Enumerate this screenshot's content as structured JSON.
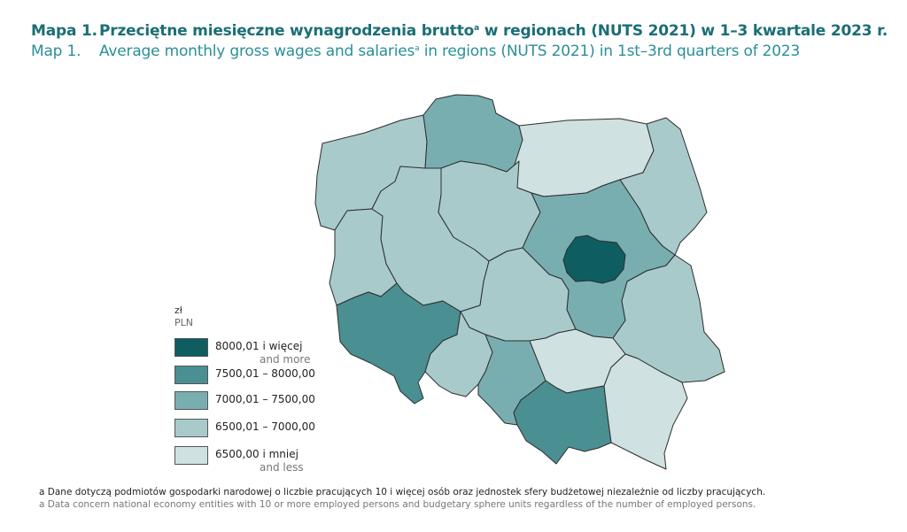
{
  "title": {
    "pl_number": "Mapa 1.",
    "pl_text": "Przeciętne miesięczne wynagrodzenia brutto",
    "pl_sup": "a",
    "pl_rest": " w regionach (NUTS 2021) w 1–3 kwartale 2023 r.",
    "en_number": "Map 1.",
    "en_text": "Average monthly gross wages and salaries",
    "en_sup": "a",
    "en_rest": " in regions (NUTS 2021) in 1st–3rd quarters of 2023"
  },
  "legend": {
    "unit_pl": "zł",
    "unit_en": "PLN",
    "items": [
      {
        "label_pl": "8000,01 i więcej",
        "label_en": "and more",
        "color": "#0e5d60"
      },
      {
        "label_pl": "7500,01 – 8000,00",
        "label_en": "",
        "color": "#4a8f92"
      },
      {
        "label_pl": "7000,01 – 7500,00",
        "label_en": "",
        "color": "#79aeb1"
      },
      {
        "label_pl": "6500,01 – 7000,00",
        "label_en": "",
        "color": "#a9cacb"
      },
      {
        "label_pl": "6500,00 i mniej",
        "label_en": "and less",
        "color": "#cfe1e1"
      }
    ]
  },
  "map_data": {
    "regions": [
      {
        "id": "zachodniopomorskie",
        "class": 3
      },
      {
        "id": "pomorskie",
        "class": 2
      },
      {
        "id": "warminsko-mazurskie",
        "class": 4
      },
      {
        "id": "podlaskie",
        "class": 3
      },
      {
        "id": "lubuskie",
        "class": 3
      },
      {
        "id": "wielkopolskie",
        "class": 3
      },
      {
        "id": "kujawsko-pomorskie",
        "class": 3
      },
      {
        "id": "mazowiecki-regionalny",
        "class": 2
      },
      {
        "id": "warszawski-stoleczny",
        "class": 0
      },
      {
        "id": "lodzkie",
        "class": 3
      },
      {
        "id": "lubelskie",
        "class": 3
      },
      {
        "id": "dolnoslaskie",
        "class": 1
      },
      {
        "id": "opolskie",
        "class": 3
      },
      {
        "id": "slaskie",
        "class": 2
      },
      {
        "id": "swietokrzyskie",
        "class": 4
      },
      {
        "id": "malopolskie",
        "class": 1
      },
      {
        "id": "podkarpackie",
        "class": 4
      }
    ]
  },
  "notes": {
    "pl": "a Dane dotyczą podmiotów gospodarki narodowej o liczbie pracujących 10 i więcej osób oraz jednostek sfery budżetowej niezależnie od liczby pracujących.",
    "en": "a Data concern national economy entities with 10 or more employed persons and budgetary sphere units regardless of the number of employed persons."
  }
}
